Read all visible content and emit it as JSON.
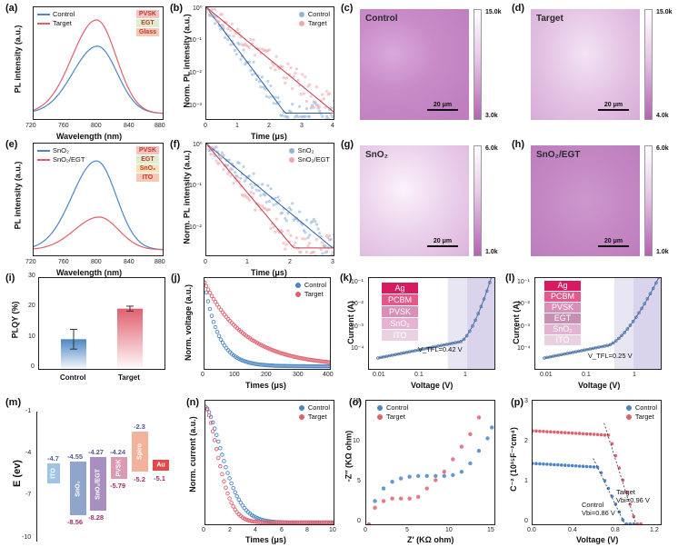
{
  "panels": {
    "a": {
      "label": "(a)",
      "ylabel": "PL intensity (a.u.)",
      "xlabel": "Wavelength (nm)",
      "xticks": [
        "720",
        "760",
        "800",
        "840",
        "880"
      ],
      "legend": [
        "Control",
        "Target"
      ],
      "stack": [
        "PVSK",
        "EGT",
        "Glass"
      ]
    },
    "b": {
      "label": "(b)",
      "ylabel": "Norm. PL intensity (a.u.)",
      "xlabel": "Time (μs)",
      "xticks": [
        "0",
        "1",
        "2",
        "3",
        "4"
      ],
      "yticks": [
        "10⁰",
        "10⁻¹",
        "10⁻²",
        "10⁻³"
      ],
      "legend": [
        "Control",
        "Target"
      ]
    },
    "c": {
      "label": "(c)",
      "title": "Control",
      "scale": "20 μm",
      "cmax": "15.0k",
      "cmin": "3.0k"
    },
    "d": {
      "label": "(d)",
      "title": "Target",
      "scale": "20 μm",
      "cmax": "15.0k",
      "cmin": "4.0k"
    },
    "e": {
      "label": "(e)",
      "ylabel": "PL intensity (a.u.)",
      "xlabel": "Wavelength (nm)",
      "xticks": [
        "720",
        "760",
        "800",
        "840",
        "880"
      ],
      "legend": [
        "SnO₂",
        "SnO₂/EGT"
      ],
      "stack": [
        "PVSK",
        "EGT",
        "SnO₂",
        "ITO"
      ]
    },
    "f": {
      "label": "(f)",
      "ylabel": "Norm. PL intensity (a.u.)",
      "xlabel": "Time (μs)",
      "xticks": [
        "0",
        "1",
        "2",
        "3"
      ],
      "yticks": [
        "10⁰",
        "10⁻¹",
        "10⁻²"
      ],
      "legend": [
        "SnO₂",
        "SnO₂/EGT"
      ]
    },
    "g": {
      "label": "(g)",
      "title": "SnO₂",
      "scale": "20 μm",
      "cmax": "6.0k",
      "cmin": "1.0k"
    },
    "h": {
      "label": "(h)",
      "title": "SnO₂/EGT",
      "scale": "20 μm",
      "cmax": "6.0k",
      "cmin": "1.0k"
    },
    "i": {
      "label": "(i)",
      "ylabel": "PLQY (%)",
      "xticks": [
        "Control",
        "Target"
      ],
      "yticks": [
        "0",
        "10",
        "20",
        "30"
      ]
    },
    "j": {
      "label": "(j)",
      "ylabel": "Norm. voltage (a.u.)",
      "xlabel": "Times (μs)",
      "xticks": [
        "0",
        "100",
        "200",
        "300",
        "400"
      ],
      "yticks": [
        "0.0",
        "0.2",
        "0.4",
        "0.6",
        "0.8",
        "1.0"
      ],
      "legend": [
        "Control",
        "Target"
      ]
    },
    "k": {
      "label": "(k)",
      "ylabel": "Current (A)",
      "xlabel": "Voltage (V)",
      "xticks": [
        "0.01",
        "0.1",
        "1"
      ],
      "yticks": [
        "10⁻¹",
        "10⁻²",
        "10⁻³",
        "10⁻⁴"
      ],
      "stack": [
        "Ag",
        "PCBM",
        "PVSK",
        "SnO₂",
        "ITO"
      ],
      "vtfl": "V_TFL=0.42 V"
    },
    "l": {
      "label": "(l)",
      "ylabel": "Current (A)",
      "xlabel": "Voltage (V)",
      "xticks": [
        "0.01",
        "0.1",
        "1"
      ],
      "yticks": [
        "10⁻¹",
        "10⁻²",
        "10⁻³",
        "10⁻⁴"
      ],
      "stack": [
        "Ag",
        "PCBM",
        "PVSK",
        "EGT",
        "SnO₂",
        "ITO"
      ],
      "vtfl": "V_TFL=0.25 V"
    },
    "m": {
      "label": "(m)",
      "ylabel": "E (ev)",
      "yticks": [
        "-1",
        "-4",
        "-7",
        "-10"
      ],
      "levels": [
        {
          "name": "ITO",
          "top": "-4.7",
          "bottom": ""
        },
        {
          "name": "SnO₂",
          "top": "-4.55",
          "bottom": "-8.56"
        },
        {
          "name": "SnO₂/EGT",
          "top": "-4.27",
          "bottom": "-8.28"
        },
        {
          "name": "PVSK",
          "top": "-4.24",
          "bottom": "-5.79"
        },
        {
          "name": "Spiro",
          "top": "-2.3",
          "bottom": "-5.2"
        },
        {
          "name": "Au",
          "top": "",
          "bottom": "-5.1"
        }
      ]
    },
    "n": {
      "label": "(n)",
      "ylabel": "Norm. current (a.u.)",
      "xlabel": "Times (μs)",
      "xticks": [
        "0",
        "2",
        "4",
        "6",
        "8",
        "10"
      ],
      "yticks": [
        "0.0",
        "0.2",
        "0.4",
        "0.6",
        "0.8",
        "1.0"
      ],
      "legend": [
        "Control",
        "Target"
      ]
    },
    "o": {
      "label": "(o)",
      "ylabel": "-Z″ (KΩ ohm)",
      "xlabel": "Z′ (KΩ ohm)",
      "xticks": [
        "0",
        "5",
        "10",
        "15"
      ],
      "yticks": [
        "0",
        "5",
        "10",
        "15"
      ],
      "legend": [
        "Control",
        "Target"
      ]
    },
    "p": {
      "label": "(p)",
      "ylabel": "C⁻² (10¹⁵F⁻²cm⁴)",
      "xlabel": "Voltage (V)",
      "xticks": [
        "0.0",
        "0.4",
        "0.8",
        "1.2"
      ],
      "yticks": [
        "0",
        "1",
        "2",
        "3"
      ],
      "legend": [
        "Control",
        "Target"
      ],
      "ann_control": [
        "Control",
        "Vbi=0.86 V"
      ],
      "ann_target": [
        "Target",
        "Vbi=0.96 V"
      ]
    }
  },
  "colors": {
    "blue": "#4a86c5",
    "red": "#e0606e",
    "pink": "#f2a7ae",
    "mapbase": "#c68ac6"
  },
  "chart_data": [
    {
      "panel": "a",
      "type": "line",
      "title": "",
      "xlabel": "Wavelength (nm)",
      "ylabel": "PL intensity (a.u.)",
      "xlim": [
        720,
        880
      ],
      "series": [
        {
          "name": "Control",
          "peak_x": 798,
          "peak_rel": 0.72
        },
        {
          "name": "Target",
          "peak_x": 797,
          "peak_rel": 1.0
        }
      ]
    },
    {
      "panel": "b",
      "type": "scatter",
      "xlabel": "Time (μs)",
      "ylabel": "Norm. PL intensity (a.u.)",
      "xlim": [
        0,
        4
      ],
      "ylim": [
        0.001,
        1
      ],
      "yscale": "log",
      "series": [
        {
          "name": "Control",
          "decay_us": 0.38
        },
        {
          "name": "Target",
          "decay_us": 0.62
        }
      ]
    },
    {
      "panel": "e",
      "type": "line",
      "xlabel": "Wavelength (nm)",
      "ylabel": "PL intensity (a.u.)",
      "xlim": [
        720,
        880
      ],
      "series": [
        {
          "name": "SnO₂",
          "peak_x": 797,
          "peak_rel": 0.95
        },
        {
          "name": "SnO₂/EGT",
          "peak_x": 800,
          "peak_rel": 0.35
        }
      ]
    },
    {
      "panel": "f",
      "type": "scatter",
      "xlabel": "Time (μs)",
      "ylabel": "Norm. PL intensity (a.u.)",
      "xlim": [
        0,
        3
      ],
      "ylim": [
        0.003,
        1
      ],
      "yscale": "log",
      "series": [
        {
          "name": "SnO₂",
          "decay_us": 0.55
        },
        {
          "name": "SnO₂/EGT",
          "decay_us": 0.38
        }
      ]
    },
    {
      "panel": "i",
      "type": "bar",
      "ylabel": "PLQY (%)",
      "categories": [
        "Control",
        "Target"
      ],
      "values": [
        10.2,
        20.1
      ],
      "errors": [
        3.2,
        0.8
      ],
      "ylim": [
        0,
        30
      ]
    },
    {
      "panel": "j",
      "type": "line",
      "xlabel": "Times (μs)",
      "ylabel": "Norm. voltage (a.u.)",
      "xlim": [
        0,
        400
      ],
      "ylim": [
        0,
        1.05
      ],
      "series": [
        {
          "name": "Control",
          "tau_us": 45
        },
        {
          "name": "Target",
          "tau_us": 130
        }
      ]
    },
    {
      "panel": "n",
      "type": "line",
      "xlabel": "Times (μs)",
      "ylabel": "Norm. current (a.u.)",
      "xlim": [
        0,
        10
      ],
      "ylim": [
        0,
        1.05
      ],
      "series": [
        {
          "name": "Control",
          "tau_us": 1.9
        },
        {
          "name": "Target",
          "tau_us": 1.4
        }
      ]
    },
    {
      "panel": "p",
      "type": "scatter",
      "xlabel": "Voltage (V)",
      "ylabel": "C⁻² (10¹⁵F⁻²cm⁴)",
      "xlim": [
        0,
        1.2
      ],
      "ylim": [
        0,
        3
      ],
      "series": [
        {
          "name": "Control",
          "plateau": 1.5,
          "vbi": 0.86
        },
        {
          "name": "Target",
          "plateau": 2.28,
          "vbi": 0.96
        }
      ]
    }
  ]
}
